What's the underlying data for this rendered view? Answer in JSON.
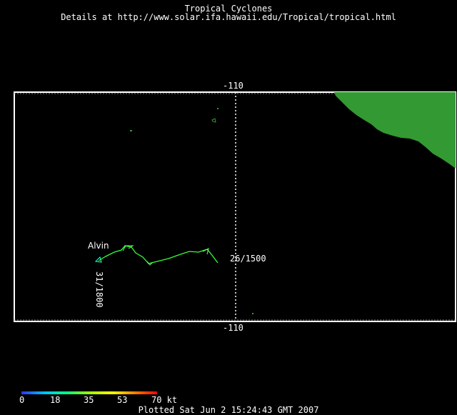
{
  "header": {
    "title": "Tropical Cyclones",
    "details": "Details at http://www.solar.ifa.hawaii.edu/Tropical/tropical.html"
  },
  "map": {
    "meridian_label_top": "-110",
    "meridian_label_bottom": "-110",
    "land_color": "#339933",
    "border_color": "#ffffff"
  },
  "storm": {
    "name": "Alvin",
    "track_color": "#33ff33",
    "start_time": "31/1800",
    "end_time": "26/1500"
  },
  "legend": {
    "ticks": [
      "0",
      "18",
      "35",
      "53",
      "70 kt"
    ]
  },
  "footer": {
    "plotted": "Plotted Sat Jun 2 15:24:43 GMT 2007"
  }
}
